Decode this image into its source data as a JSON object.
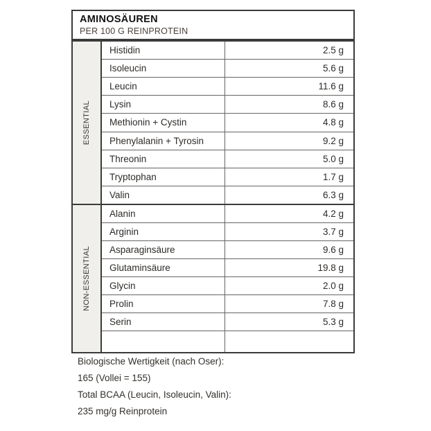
{
  "header": {
    "title": "AMINOSÄUREN",
    "subtitle": "PER 100 G REINPROTEIN"
  },
  "table": {
    "sections": [
      {
        "label": "ESSENTIAL",
        "rows": [
          {
            "name": "Histidin",
            "value": "2.5 g"
          },
          {
            "name": "Isoleucin",
            "value": "5.6 g"
          },
          {
            "name": "Leucin",
            "value": "11.6 g"
          },
          {
            "name": "Lysin",
            "value": "8.6 g"
          },
          {
            "name": "Methionin + Cystin",
            "value": "4.8 g"
          },
          {
            "name": "Phenylalanin + Tyrosin",
            "value": "9.2 g"
          },
          {
            "name": "Threonin",
            "value": "5.0 g"
          },
          {
            "name": "Tryptophan",
            "value": "1.7 g"
          },
          {
            "name": "Valin",
            "value": "6.3 g"
          }
        ]
      },
      {
        "label": "NON-ESSENTIAL",
        "rows": [
          {
            "name": "Alanin",
            "value": "4.2 g"
          },
          {
            "name": "Arginin",
            "value": "3.7 g"
          },
          {
            "name": "Asparaginsäure",
            "value": "9.6 g"
          },
          {
            "name": "Glutaminsäure",
            "value": "19.8 g"
          },
          {
            "name": "Glycin",
            "value": "2.0 g"
          },
          {
            "name": "Prolin",
            "value": "7.8 g"
          },
          {
            "name": "Serin",
            "value": "5.3 g"
          }
        ]
      }
    ]
  },
  "footer": {
    "lines": [
      "Biologische Wertigkeit (nach Oser):",
      "165 (Vollei = 155)",
      "Total BCAA (Leucin, Isoleucin, Valin):",
      "235 mg/g Reinprotein"
    ]
  },
  "colors": {
    "outer_border": "#3a3a3a",
    "inner_border": "#686460",
    "side_column_bg": "#f0efec",
    "text": "#2e2b28",
    "background": "#ffffff"
  }
}
